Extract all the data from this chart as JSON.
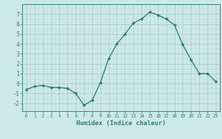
{
  "x": [
    0,
    1,
    2,
    3,
    4,
    5,
    6,
    7,
    8,
    9,
    10,
    11,
    12,
    13,
    14,
    15,
    16,
    17,
    18,
    19,
    20,
    21,
    22,
    23
  ],
  "y": [
    -0.6,
    -0.3,
    -0.2,
    -0.4,
    -0.4,
    -0.5,
    -1.0,
    -2.2,
    -1.7,
    0.1,
    2.5,
    4.0,
    5.0,
    6.1,
    6.5,
    7.2,
    6.9,
    6.5,
    5.9,
    3.9,
    2.4,
    1.0,
    1.0,
    0.2
  ],
  "line_color": "#2e7d6e",
  "marker": "D",
  "marker_size": 2.2,
  "linewidth": 1.0,
  "bg_color": "#cce8e8",
  "grid_color_major": "#aacaca",
  "grid_color_minor": "#bbdada",
  "xlabel": "Humidex (Indice chaleur)",
  "xlabel_fontsize": 6.5,
  "ylabel_ticks": [
    -2,
    -1,
    0,
    1,
    2,
    3,
    4,
    5,
    6,
    7
  ],
  "xlim": [
    -0.5,
    23.5
  ],
  "ylim": [
    -2.8,
    8.0
  ],
  "tick_fontsize": 5.5,
  "xtick_fontsize": 4.8
}
